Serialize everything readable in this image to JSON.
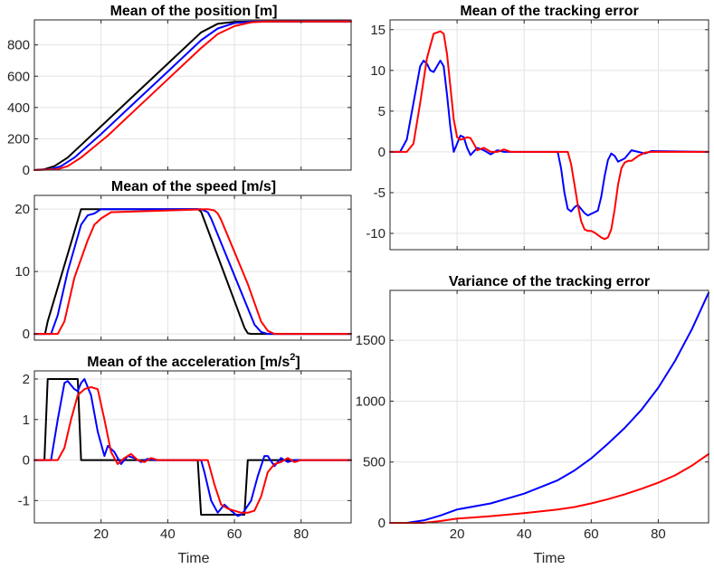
{
  "chart_data": [
    {
      "id": "pos",
      "type": "line",
      "title": "Mean of the position [m]",
      "xlabel": "",
      "xlim": [
        0,
        95
      ],
      "ylim": [
        0,
        960
      ],
      "xticks": [
        20,
        40,
        60,
        80
      ],
      "xtick_labels": [],
      "yticks": [
        0,
        200,
        400,
        600,
        800
      ],
      "ytick_labels": [
        "0",
        "200",
        "400",
        "600",
        "800"
      ],
      "grid": true,
      "series": [
        {
          "name": "black",
          "color": "#000000",
          "x": [
            0,
            3,
            6,
            10,
            14,
            20,
            30,
            40,
            50,
            55,
            60,
            65,
            70,
            95
          ],
          "y": [
            0,
            5,
            25,
            80,
            160,
            280,
            480,
            680,
            880,
            935,
            948,
            950,
            950,
            950
          ]
        },
        {
          "name": "blue",
          "color": "#0000ff",
          "x": [
            0,
            5,
            8,
            12,
            16,
            20,
            30,
            40,
            50,
            55,
            60,
            65,
            70,
            95
          ],
          "y": [
            0,
            5,
            25,
            80,
            155,
            230,
            430,
            630,
            830,
            905,
            940,
            949,
            950,
            950
          ]
        },
        {
          "name": "red",
          "color": "#ff0000",
          "x": [
            0,
            7,
            10,
            14,
            18,
            22,
            30,
            40,
            50,
            55,
            60,
            65,
            70,
            95
          ],
          "y": [
            0,
            5,
            25,
            80,
            150,
            220,
            380,
            580,
            780,
            870,
            920,
            945,
            950,
            950
          ]
        }
      ]
    },
    {
      "id": "speed",
      "type": "line",
      "title": "Mean of the speed [m/s]",
      "xlabel": "",
      "xlim": [
        0,
        95
      ],
      "ylim": [
        -1,
        22.2
      ],
      "xticks": [
        20,
        40,
        60,
        80
      ],
      "xtick_labels": [],
      "yticks": [
        0,
        10,
        20
      ],
      "ytick_labels": [
        "0",
        "10",
        "20"
      ],
      "grid": true,
      "series": [
        {
          "name": "black",
          "color": "#000000",
          "x": [
            0,
            3.2,
            4,
            14,
            49,
            50,
            63,
            64,
            65,
            95
          ],
          "y": [
            0,
            0,
            2,
            20,
            20,
            19.6,
            1,
            0.1,
            0,
            0
          ]
        },
        {
          "name": "blue",
          "color": "#0000ff",
          "x": [
            0,
            5,
            7,
            10,
            14,
            16,
            18,
            20,
            50,
            52,
            53,
            66,
            68,
            70,
            95
          ],
          "y": [
            0,
            0,
            3,
            10,
            17.5,
            19,
            19.3,
            20,
            20,
            19.5,
            18.5,
            1.5,
            0.3,
            0,
            0
          ]
        },
        {
          "name": "red",
          "color": "#ff0000",
          "x": [
            0,
            7,
            9,
            12,
            16,
            18,
            20,
            23,
            52,
            54,
            55,
            56,
            64,
            68,
            70,
            72,
            95
          ],
          "y": [
            0,
            0,
            2,
            9,
            15,
            17.5,
            18.5,
            19.5,
            20,
            19.8,
            19.3,
            18.3,
            8,
            2,
            0.5,
            0,
            0
          ]
        }
      ]
    },
    {
      "id": "acc",
      "type": "line",
      "title": "Mean of the acceleration [m/s",
      "title_sup": "2",
      "title_end": "]",
      "xlabel": "Time",
      "xlim": [
        0,
        95
      ],
      "ylim": [
        -1.55,
        2.2
      ],
      "xticks": [
        20,
        40,
        60,
        80
      ],
      "xtick_labels": [
        "20",
        "40",
        "60",
        "80"
      ],
      "yticks": [
        -1,
        0,
        1,
        2
      ],
      "ytick_labels": [
        "-1",
        "0",
        "1",
        "2"
      ],
      "grid": true,
      "series": [
        {
          "name": "black",
          "color": "#000000",
          "x": [
            0,
            3,
            4,
            13,
            14,
            49,
            50,
            63,
            64,
            95
          ],
          "y": [
            0,
            0,
            2,
            2,
            0,
            0,
            -1.35,
            -1.35,
            0,
            0
          ]
        },
        {
          "name": "blue",
          "color": "#0000ff",
          "x": [
            0,
            5,
            7,
            9,
            10,
            12,
            13,
            14,
            15,
            17,
            19,
            21,
            22,
            24,
            26,
            28,
            30,
            32,
            34,
            36,
            50,
            51,
            53,
            55,
            57,
            59,
            61,
            62,
            63,
            65,
            67,
            69,
            70,
            72,
            74,
            76,
            78,
            95
          ],
          "y": [
            0,
            0,
            1,
            1.9,
            1.95,
            1.75,
            1.7,
            1.9,
            2.0,
            1.6,
            0.7,
            0.1,
            0.35,
            0.2,
            -0.1,
            0.1,
            0.05,
            -0.05,
            0.03,
            0,
            0,
            -0.3,
            -1.0,
            -1.3,
            -1.1,
            -1.25,
            -1.38,
            -1.35,
            -1.25,
            -1.0,
            -0.4,
            0.1,
            0.1,
            -0.15,
            0.05,
            -0.05,
            0,
            0
          ]
        },
        {
          "name": "red",
          "color": "#ff0000",
          "x": [
            0,
            7,
            9,
            11,
            13,
            15,
            17,
            19,
            21,
            23,
            25,
            27,
            29,
            31,
            33,
            35,
            37,
            39,
            52,
            54,
            56,
            58,
            60,
            62,
            64,
            66,
            68,
            70,
            72,
            74,
            76,
            78,
            80,
            82,
            95
          ],
          "y": [
            0,
            0,
            0.3,
            1.0,
            1.6,
            1.75,
            1.8,
            1.75,
            1.0,
            0.2,
            -0.1,
            0.05,
            0.15,
            0,
            -0.05,
            0.05,
            0,
            0,
            0,
            -0.6,
            -1.1,
            -1.2,
            -1.25,
            -1.3,
            -1.3,
            -1.25,
            -0.9,
            -0.3,
            -0.1,
            -0.05,
            0.05,
            -0.05,
            0,
            0,
            0
          ]
        }
      ]
    },
    {
      "id": "err",
      "type": "line",
      "title": "Mean of the tracking error",
      "xlabel": "",
      "xlim": [
        0,
        95
      ],
      "ylim": [
        -12,
        16.2
      ],
      "xticks": [
        20,
        40,
        60,
        80
      ],
      "xtick_labels": [],
      "yticks": [
        -10,
        -5,
        0,
        5,
        10,
        15
      ],
      "ytick_labels": [
        "-10",
        "-5",
        "0",
        "5",
        "10",
        "15"
      ],
      "grid": true,
      "series": [
        {
          "name": "blue",
          "color": "#0000ff",
          "x": [
            0,
            3,
            5,
            7,
            9,
            10,
            11,
            12,
            13,
            14,
            15,
            16,
            17,
            18,
            19,
            20,
            21,
            22,
            23,
            24,
            26,
            28,
            30,
            32,
            34,
            36,
            50,
            51,
            52,
            53,
            54,
            55,
            56,
            57,
            58,
            59,
            60,
            61,
            62,
            63,
            64,
            65,
            66,
            67,
            68,
            70,
            72,
            74,
            76,
            78,
            95
          ],
          "y": [
            0,
            0,
            1.5,
            6,
            10.5,
            11.2,
            10.8,
            10,
            9.8,
            10.5,
            11.2,
            10.5,
            7,
            3,
            0,
            1,
            2,
            1.8,
            0.5,
            -0.4,
            0.5,
            0.2,
            -0.3,
            0.2,
            0,
            0,
            0,
            -2,
            -5,
            -7,
            -7.3,
            -6.8,
            -6.5,
            -7,
            -7.5,
            -7.8,
            -7.6,
            -7.4,
            -7.2,
            -5.5,
            -3,
            -1,
            -0.2,
            -0.5,
            -1.2,
            -0.8,
            0.2,
            0,
            -0.2,
            0.1,
            0
          ]
        },
        {
          "name": "red",
          "color": "#ff0000",
          "x": [
            0,
            5,
            7,
            9,
            11,
            13,
            15,
            16,
            17,
            18,
            19,
            20,
            21,
            22,
            23,
            24,
            25,
            26,
            28,
            30,
            32,
            34,
            36,
            38,
            40,
            53,
            54,
            55,
            56,
            57,
            58,
            59,
            60,
            61,
            62,
            63,
            64,
            65,
            66,
            67,
            68,
            69,
            70,
            71,
            72,
            74,
            76,
            78,
            95
          ],
          "y": [
            0,
            0,
            1,
            6,
            11.5,
            14.5,
            14.8,
            14.5,
            12,
            8,
            4,
            1.8,
            1.5,
            1.6,
            1.8,
            1.7,
            1,
            0.2,
            0.5,
            0,
            0,
            0.3,
            0,
            0,
            0,
            0,
            -1.5,
            -4,
            -6.5,
            -8.5,
            -9.5,
            -9.7,
            -9.7,
            -9.9,
            -10.2,
            -10.5,
            -10.7,
            -10.5,
            -9.5,
            -7,
            -4,
            -2,
            -1.3,
            -1.1,
            -1.1,
            -0.5,
            -0.1,
            0,
            0
          ]
        }
      ]
    },
    {
      "id": "var",
      "type": "line",
      "title": "Variance of the tracking error",
      "xlabel": "Time",
      "xlim": [
        0,
        95
      ],
      "ylim": [
        0,
        1910
      ],
      "xticks": [
        20,
        40,
        60,
        80
      ],
      "xtick_labels": [
        "20",
        "40",
        "60",
        "80"
      ],
      "yticks": [
        0,
        500,
        1000,
        1500
      ],
      "ytick_labels": [
        "0",
        "500",
        "1000",
        "1500"
      ],
      "grid": true,
      "series": [
        {
          "name": "blue",
          "color": "#0000ff",
          "x": [
            0,
            5,
            10,
            15,
            20,
            30,
            40,
            50,
            55,
            60,
            65,
            70,
            75,
            80,
            85,
            90,
            95
          ],
          "y": [
            0,
            0,
            20,
            60,
            110,
            160,
            240,
            350,
            430,
            530,
            650,
            780,
            930,
            1110,
            1330,
            1590,
            1890
          ]
        },
        {
          "name": "red",
          "color": "#ff0000",
          "x": [
            0,
            10,
            15,
            20,
            30,
            40,
            50,
            55,
            60,
            65,
            70,
            75,
            80,
            85,
            90,
            95
          ],
          "y": [
            0,
            0,
            15,
            35,
            55,
            80,
            110,
            130,
            160,
            195,
            235,
            280,
            330,
            390,
            470,
            565
          ]
        }
      ]
    }
  ]
}
